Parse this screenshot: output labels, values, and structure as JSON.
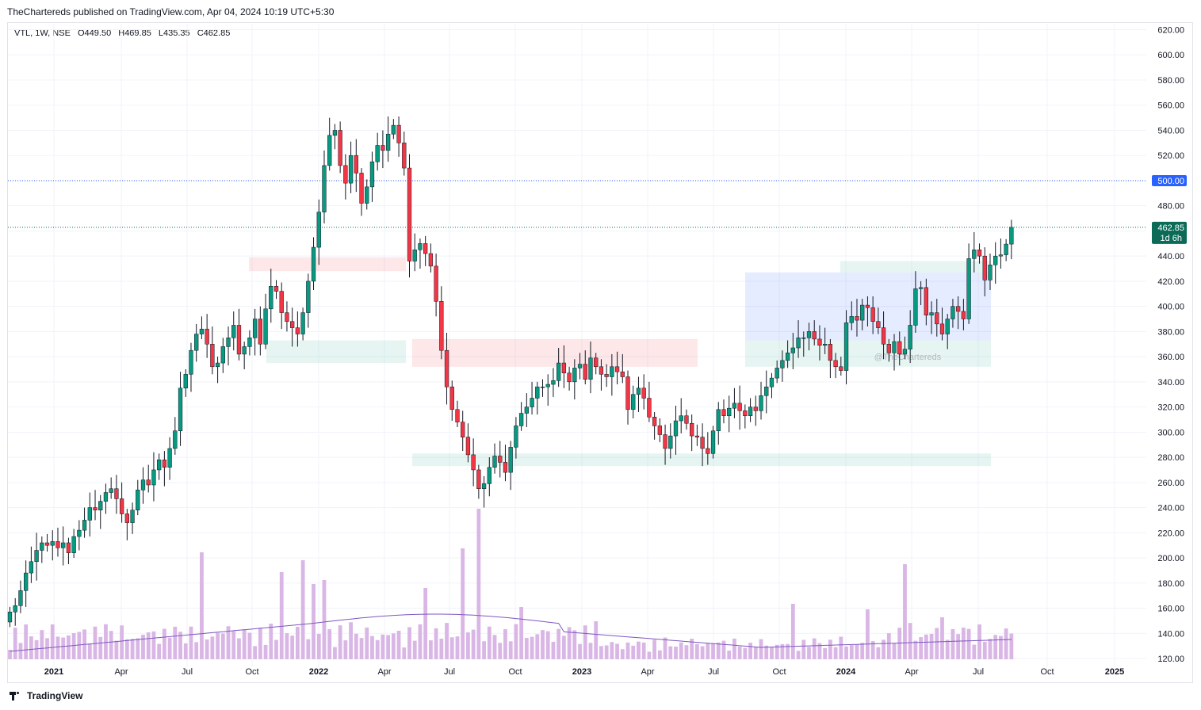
{
  "header": {
    "text": "TheChartereds published on TradingView.com, Apr 04, 2024 10:19 UTC+5:30"
  },
  "legend": {
    "symbol": "VTL, 1W, NSE",
    "open": "O449.50",
    "high": "H469.85",
    "low": "L435.35",
    "close": "C462.85"
  },
  "watermark": "@TheChartereds",
  "footer": {
    "brand": "TradingView"
  },
  "price_badges": {
    "level_500": "500.00",
    "last_price": "462.85",
    "countdown": "1d 6h"
  },
  "colors": {
    "up": "#089981",
    "down": "#f23645",
    "volume": "#d9b6e5",
    "volume_ma": "#7e57c2",
    "level_line": "#2962ff",
    "last_badge": "#0b6b57"
  },
  "chart_data": {
    "type": "candlestick",
    "timeframe": "1W",
    "ylim": [
      120,
      620
    ],
    "y_ticks": [
      "620.00",
      "600.00",
      "580.00",
      "560.00",
      "540.00",
      "520.00",
      "500.00",
      "480.00",
      "460.00",
      "440.00",
      "420.00",
      "400.00",
      "380.00",
      "360.00",
      "340.00",
      "320.00",
      "300.00",
      "280.00",
      "260.00",
      "240.00",
      "220.00",
      "200.00",
      "180.00",
      "160.00",
      "140.00",
      "120.00"
    ],
    "x_ticks": [
      "2021",
      "Apr",
      "Jul",
      "Oct",
      "2022",
      "Apr",
      "Jul",
      "Oct",
      "2023",
      "Apr",
      "Jul",
      "Oct",
      "2024",
      "Apr",
      "Jul",
      "Oct",
      "2025"
    ],
    "horizontal_levels": [
      500,
      462.85
    ],
    "zones": [
      {
        "color": "red",
        "from": 428,
        "to": 439
      },
      {
        "color": "green",
        "from": 355,
        "to": 373
      },
      {
        "color": "red",
        "from": 352,
        "to": 374
      },
      {
        "color": "green",
        "from": 273,
        "to": 283
      },
      {
        "color": "blue",
        "from": 373,
        "to": 427
      },
      {
        "color": "green",
        "from": 427,
        "to": 436
      },
      {
        "color": "green",
        "from": 352,
        "to": 373
      }
    ],
    "closes": [
      157,
      162,
      174,
      188,
      197,
      206,
      212,
      210,
      213,
      208,
      212,
      204,
      217,
      222,
      230,
      240,
      238,
      245,
      252,
      255,
      247,
      235,
      228,
      238,
      254,
      262,
      258,
      270,
      278,
      272,
      287,
      301,
      335,
      346,
      365,
      378,
      382,
      370,
      352,
      355,
      368,
      375,
      385,
      362,
      368,
      375,
      390,
      370,
      398,
      416,
      412,
      395,
      388,
      383,
      378,
      395,
      420,
      447,
      475,
      512,
      536,
      540,
      512,
      498,
      520,
      506,
      482,
      495,
      515,
      528,
      524,
      537,
      544,
      530,
      510,
      436,
      445,
      450,
      442,
      432,
      404,
      365,
      336,
      318,
      308,
      296,
      282,
      270,
      255,
      259,
      272,
      281,
      276,
      268,
      288,
      305,
      315,
      320,
      327,
      336,
      336,
      338,
      341,
      355,
      347,
      340,
      351,
      354,
      342,
      359,
      352,
      346,
      344,
      352,
      348,
      344,
      318,
      330,
      335,
      327,
      312,
      305,
      298,
      287,
      297,
      309,
      313,
      307,
      297,
      296,
      287,
      283,
      301,
      318,
      313,
      319,
      323,
      317,
      313,
      320,
      317,
      329,
      336,
      343,
      351,
      357,
      363,
      367,
      375,
      375,
      380,
      374,
      369,
      370,
      357,
      352,
      349,
      387,
      392,
      389,
      401,
      399,
      388,
      383,
      370,
      363,
      372,
      362,
      366,
      385,
      414,
      415,
      393,
      395,
      386,
      378,
      390,
      400,
      396,
      390,
      438,
      445,
      440,
      421,
      433,
      440,
      441,
      449.5,
      462.85
    ],
    "volume_ma_range": [
      125,
      158
    ]
  }
}
